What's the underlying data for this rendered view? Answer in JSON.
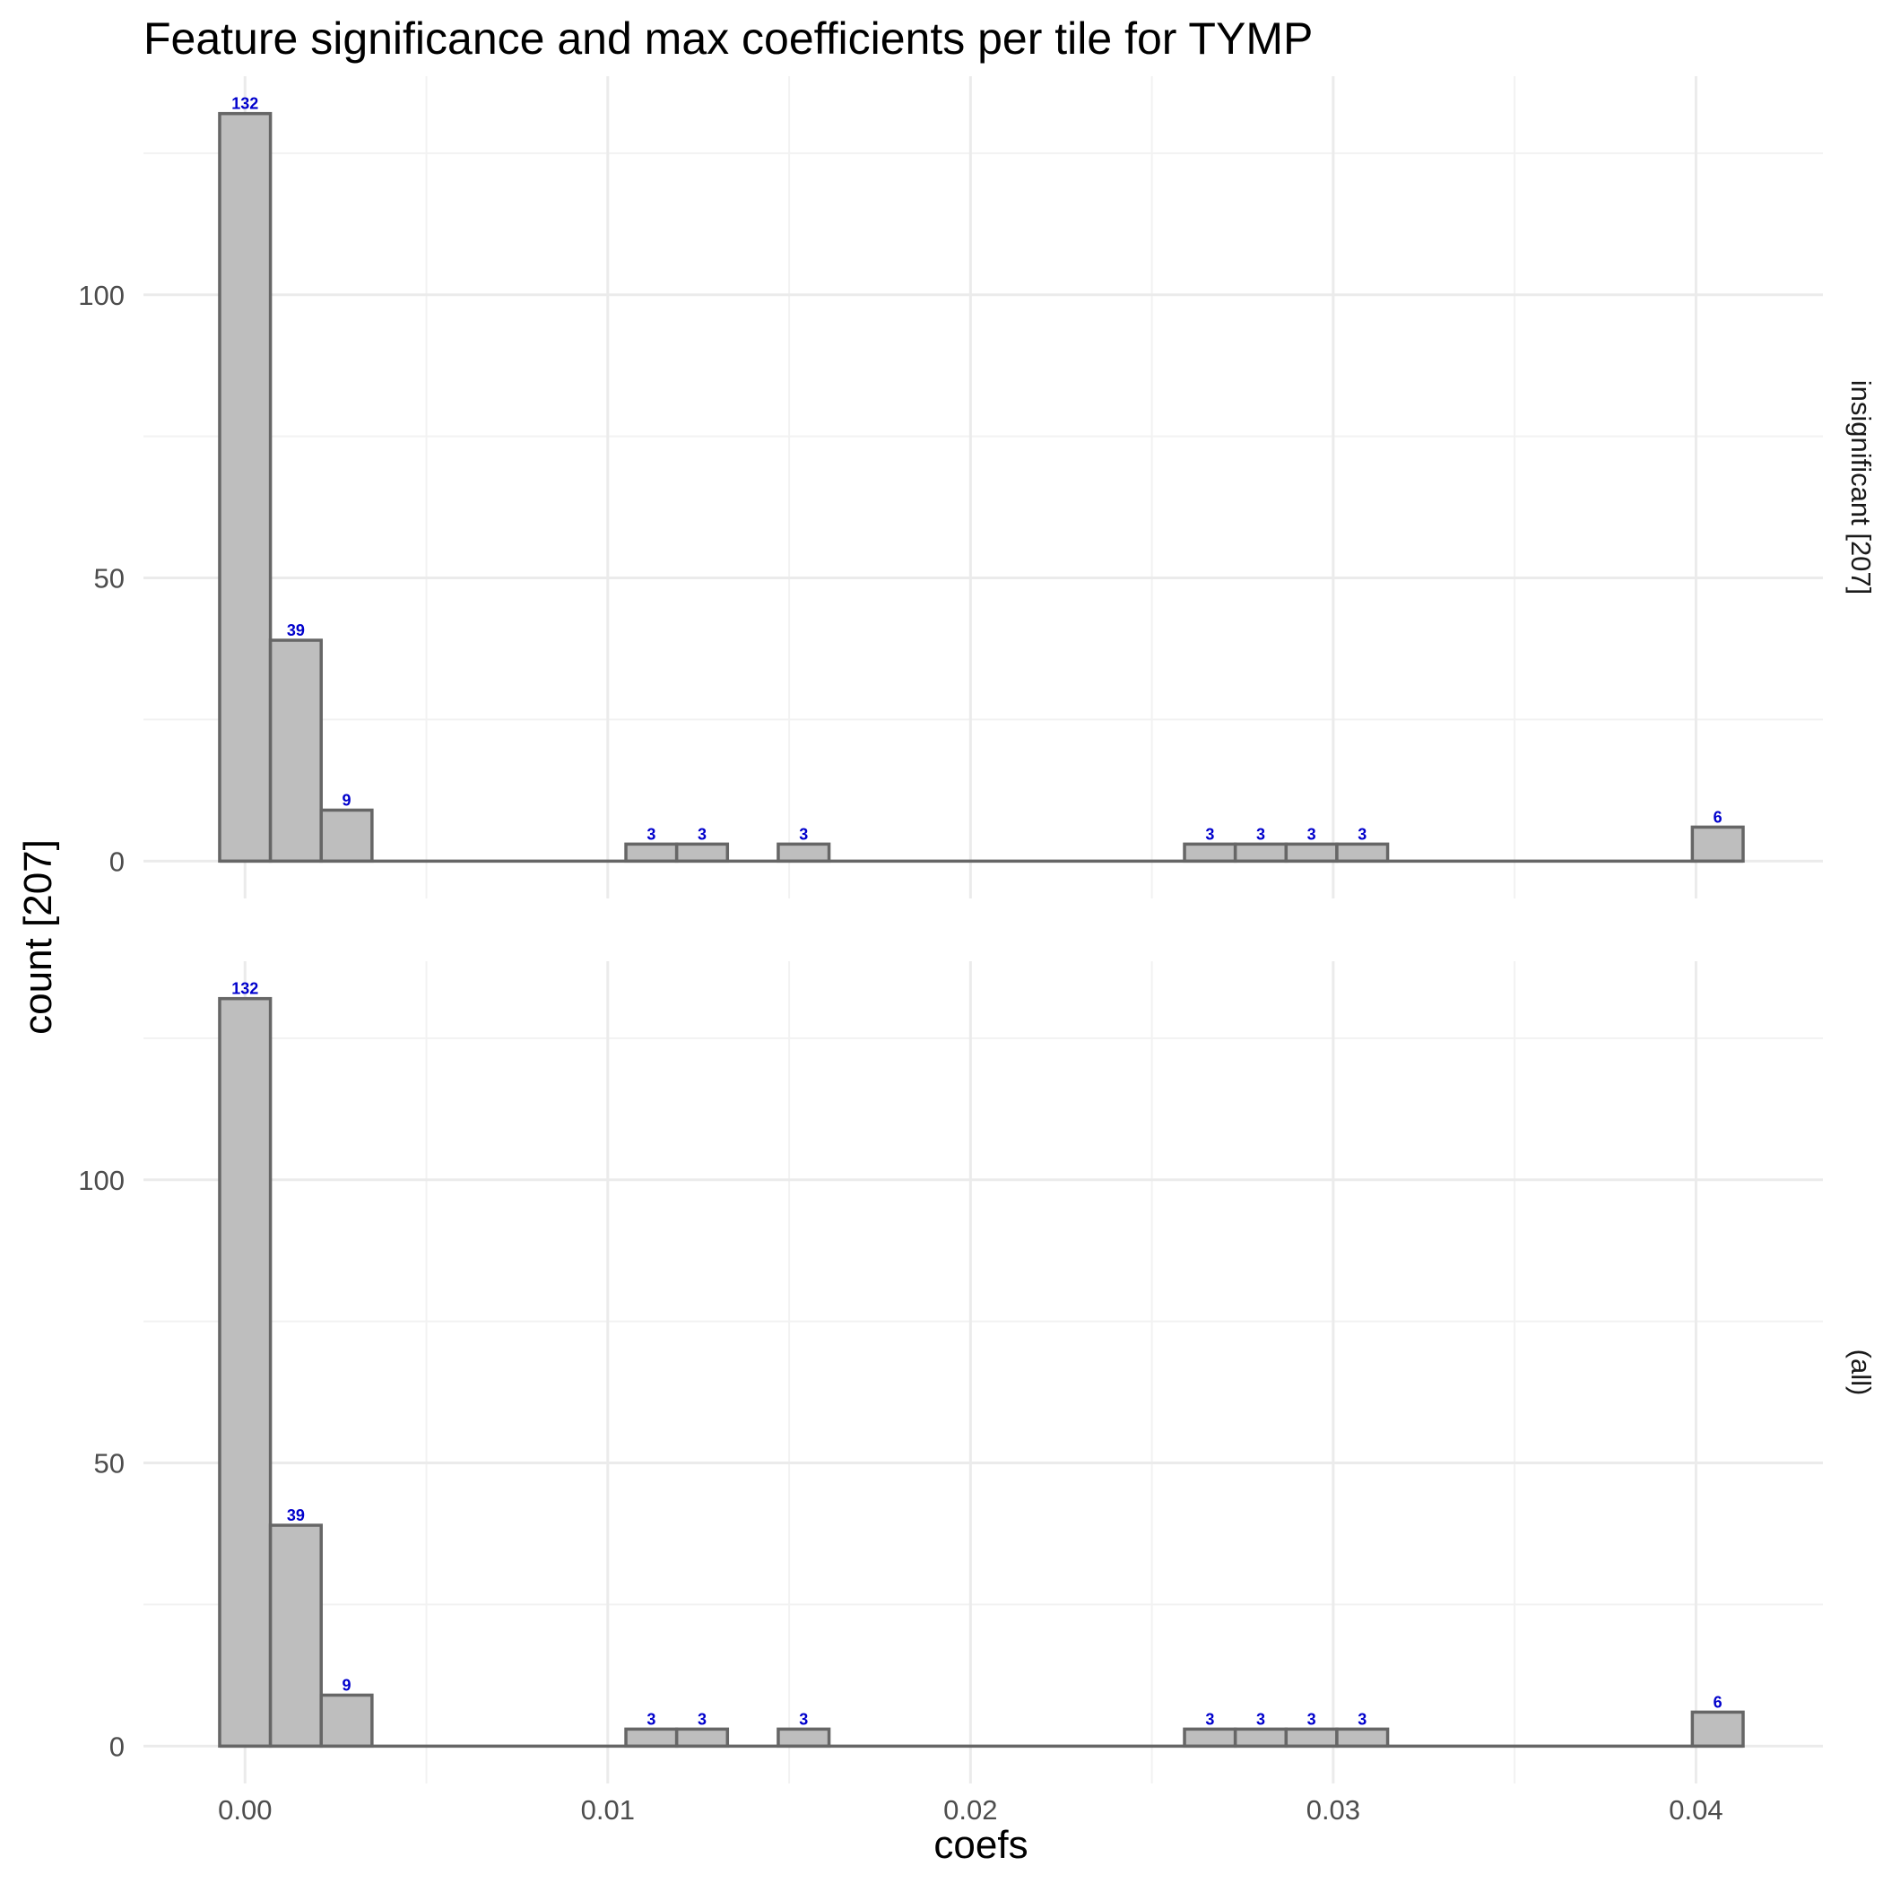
{
  "chart_data": {
    "type": "bar",
    "title": "Feature significance and max coefficients per tile for TYMP",
    "xlabel": "coefs",
    "ylabel": "count [207]",
    "xlim": [
      -0.0028,
      0.0435
    ],
    "ylim": [
      -6.6,
      138.6
    ],
    "x_ticks": [
      0.0,
      0.01,
      0.02,
      0.03,
      0.04
    ],
    "x_tick_labels": [
      "0.00",
      "0.01",
      "0.02",
      "0.03",
      "0.04"
    ],
    "y_ticks": [
      0,
      50,
      100
    ],
    "y_tick_labels": [
      "0",
      "50",
      "100"
    ],
    "bin_width": 0.0014,
    "grid": true,
    "panels": [
      {
        "strip_label": "insignificant [207]",
        "bins": [
          {
            "x": 0.0,
            "count": 132,
            "label": "132"
          },
          {
            "x": 0.0014,
            "count": 39,
            "label": "39"
          },
          {
            "x": 0.0028,
            "count": 9,
            "label": "9"
          },
          {
            "x": 0.0042,
            "count": 0,
            "label": ""
          },
          {
            "x": 0.0056,
            "count": 0,
            "label": ""
          },
          {
            "x": 0.007,
            "count": 0,
            "label": ""
          },
          {
            "x": 0.0084,
            "count": 0,
            "label": ""
          },
          {
            "x": 0.0098,
            "count": 0,
            "label": ""
          },
          {
            "x": 0.0112,
            "count": 3,
            "label": "3"
          },
          {
            "x": 0.0126,
            "count": 3,
            "label": "3"
          },
          {
            "x": 0.014,
            "count": 0,
            "label": ""
          },
          {
            "x": 0.0154,
            "count": 3,
            "label": "3"
          },
          {
            "x": 0.0168,
            "count": 0,
            "label": ""
          },
          {
            "x": 0.0182,
            "count": 0,
            "label": ""
          },
          {
            "x": 0.0196,
            "count": 0,
            "label": ""
          },
          {
            "x": 0.021,
            "count": 0,
            "label": ""
          },
          {
            "x": 0.0224,
            "count": 0,
            "label": ""
          },
          {
            "x": 0.0238,
            "count": 0,
            "label": ""
          },
          {
            "x": 0.0252,
            "count": 0,
            "label": ""
          },
          {
            "x": 0.0266,
            "count": 3,
            "label": "3"
          },
          {
            "x": 0.028,
            "count": 3,
            "label": "3"
          },
          {
            "x": 0.0294,
            "count": 3,
            "label": "3"
          },
          {
            "x": 0.0308,
            "count": 3,
            "label": "3"
          },
          {
            "x": 0.0322,
            "count": 0,
            "label": ""
          },
          {
            "x": 0.0336,
            "count": 0,
            "label": ""
          },
          {
            "x": 0.035,
            "count": 0,
            "label": ""
          },
          {
            "x": 0.0364,
            "count": 0,
            "label": ""
          },
          {
            "x": 0.0378,
            "count": 0,
            "label": ""
          },
          {
            "x": 0.0392,
            "count": 0,
            "label": ""
          },
          {
            "x": 0.0406,
            "count": 6,
            "label": "6"
          }
        ]
      },
      {
        "strip_label": "(all)",
        "bins": [
          {
            "x": 0.0,
            "count": 132,
            "label": "132"
          },
          {
            "x": 0.0014,
            "count": 39,
            "label": "39"
          },
          {
            "x": 0.0028,
            "count": 9,
            "label": "9"
          },
          {
            "x": 0.0042,
            "count": 0,
            "label": ""
          },
          {
            "x": 0.0056,
            "count": 0,
            "label": ""
          },
          {
            "x": 0.007,
            "count": 0,
            "label": ""
          },
          {
            "x": 0.0084,
            "count": 0,
            "label": ""
          },
          {
            "x": 0.0098,
            "count": 0,
            "label": ""
          },
          {
            "x": 0.0112,
            "count": 3,
            "label": "3"
          },
          {
            "x": 0.0126,
            "count": 3,
            "label": "3"
          },
          {
            "x": 0.014,
            "count": 0,
            "label": ""
          },
          {
            "x": 0.0154,
            "count": 3,
            "label": "3"
          },
          {
            "x": 0.0168,
            "count": 0,
            "label": ""
          },
          {
            "x": 0.0182,
            "count": 0,
            "label": ""
          },
          {
            "x": 0.0196,
            "count": 0,
            "label": ""
          },
          {
            "x": 0.021,
            "count": 0,
            "label": ""
          },
          {
            "x": 0.0224,
            "count": 0,
            "label": ""
          },
          {
            "x": 0.0238,
            "count": 0,
            "label": ""
          },
          {
            "x": 0.0252,
            "count": 0,
            "label": ""
          },
          {
            "x": 0.0266,
            "count": 3,
            "label": "3"
          },
          {
            "x": 0.028,
            "count": 3,
            "label": "3"
          },
          {
            "x": 0.0294,
            "count": 3,
            "label": "3"
          },
          {
            "x": 0.0308,
            "count": 3,
            "label": "3"
          },
          {
            "x": 0.0322,
            "count": 0,
            "label": ""
          },
          {
            "x": 0.0336,
            "count": 0,
            "label": ""
          },
          {
            "x": 0.035,
            "count": 0,
            "label": ""
          },
          {
            "x": 0.0364,
            "count": 0,
            "label": ""
          },
          {
            "x": 0.0378,
            "count": 0,
            "label": ""
          },
          {
            "x": 0.0392,
            "count": 0,
            "label": ""
          },
          {
            "x": 0.0406,
            "count": 6,
            "label": "6"
          }
        ]
      }
    ],
    "colors": {
      "bar_fill": "#bebebe",
      "bar_outline": "#666666",
      "data_label": "#0000cc",
      "grid": "#ebebeb"
    }
  }
}
